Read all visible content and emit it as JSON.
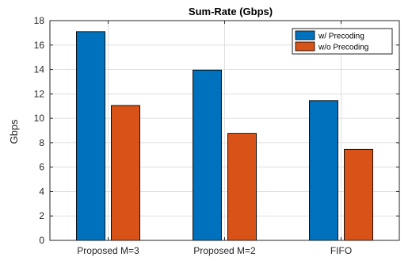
{
  "chart_data": {
    "type": "bar",
    "title": "Sum-Rate (Gbps)",
    "xlabel": "",
    "ylabel": "Gbps",
    "categories": [
      "Proposed M=3",
      "Proposed M=2",
      "FIFO"
    ],
    "series": [
      {
        "name": "w/ Precoding",
        "values": [
          17.1,
          13.95,
          11.45
        ],
        "color": "#0072BD"
      },
      {
        "name": "w/o Precoding",
        "values": [
          11.05,
          8.75,
          7.45
        ],
        "color": "#D95319"
      }
    ],
    "ylim": [
      0,
      18
    ],
    "yticks": [
      0,
      2,
      4,
      6,
      8,
      10,
      12,
      14,
      16,
      18
    ],
    "grid": true,
    "legend_position": "top-right",
    "grid_color": "#dfdfdf",
    "axis_color": "#262626"
  }
}
